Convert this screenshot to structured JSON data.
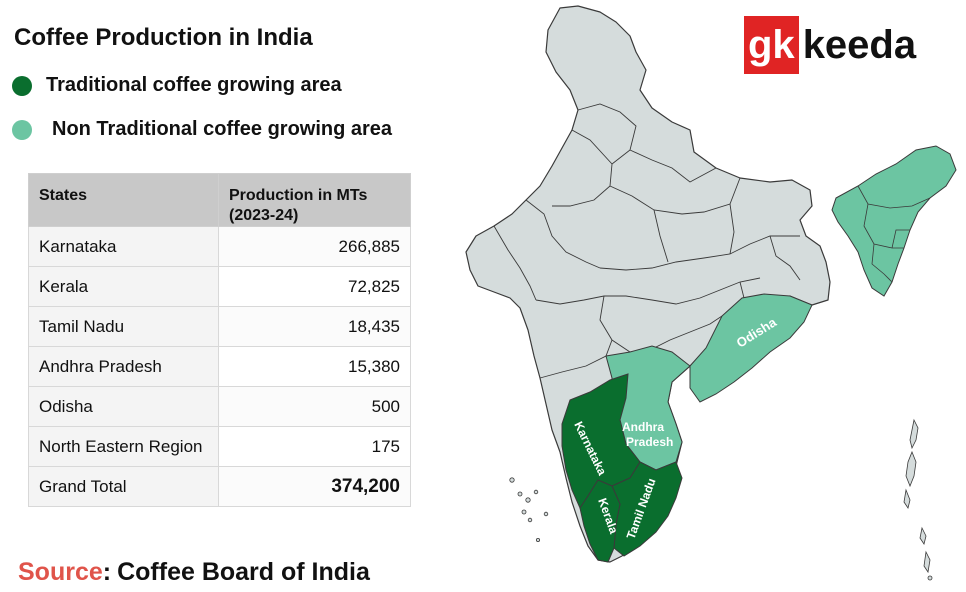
{
  "title": "Coffee Production in India",
  "legend": [
    {
      "label": "Traditional coffee growing area",
      "color": "#0a6e2e"
    },
    {
      "label": "Non Traditional coffee growing area",
      "color": "#6cc5a2"
    }
  ],
  "table": {
    "headers": [
      "States",
      "Production in MTs (2023-24)"
    ],
    "rows": [
      {
        "state": "Karnataka",
        "value": "266,885"
      },
      {
        "state": "Kerala",
        "value": "72,825"
      },
      {
        "state": "Tamil Nadu",
        "value": "18,435"
      },
      {
        "state": "Andhra Pradesh",
        "value": "15,380"
      },
      {
        "state": "Odisha",
        "value": "500"
      },
      {
        "state": "North Eastern Region",
        "value": "175"
      }
    ],
    "total": {
      "state": "Grand Total",
      "value": "374,200"
    }
  },
  "source": {
    "label": "Source",
    "text": "Coffee Board of India"
  },
  "logo": {
    "part1": "gk",
    "part2": "keeda"
  },
  "map_labels": {
    "karnataka": "Karnataka",
    "kerala": "Kerala",
    "tamil_nadu": "Tamil Nadu",
    "andhra_1": "Andhra",
    "andhra_2": "Pradesh",
    "odisha": "Odisha"
  },
  "colors": {
    "base": "#d5dcdc",
    "traditional": "#0a6e2e",
    "non_traditional": "#6cc5a2",
    "border": "#3a3a3a"
  }
}
